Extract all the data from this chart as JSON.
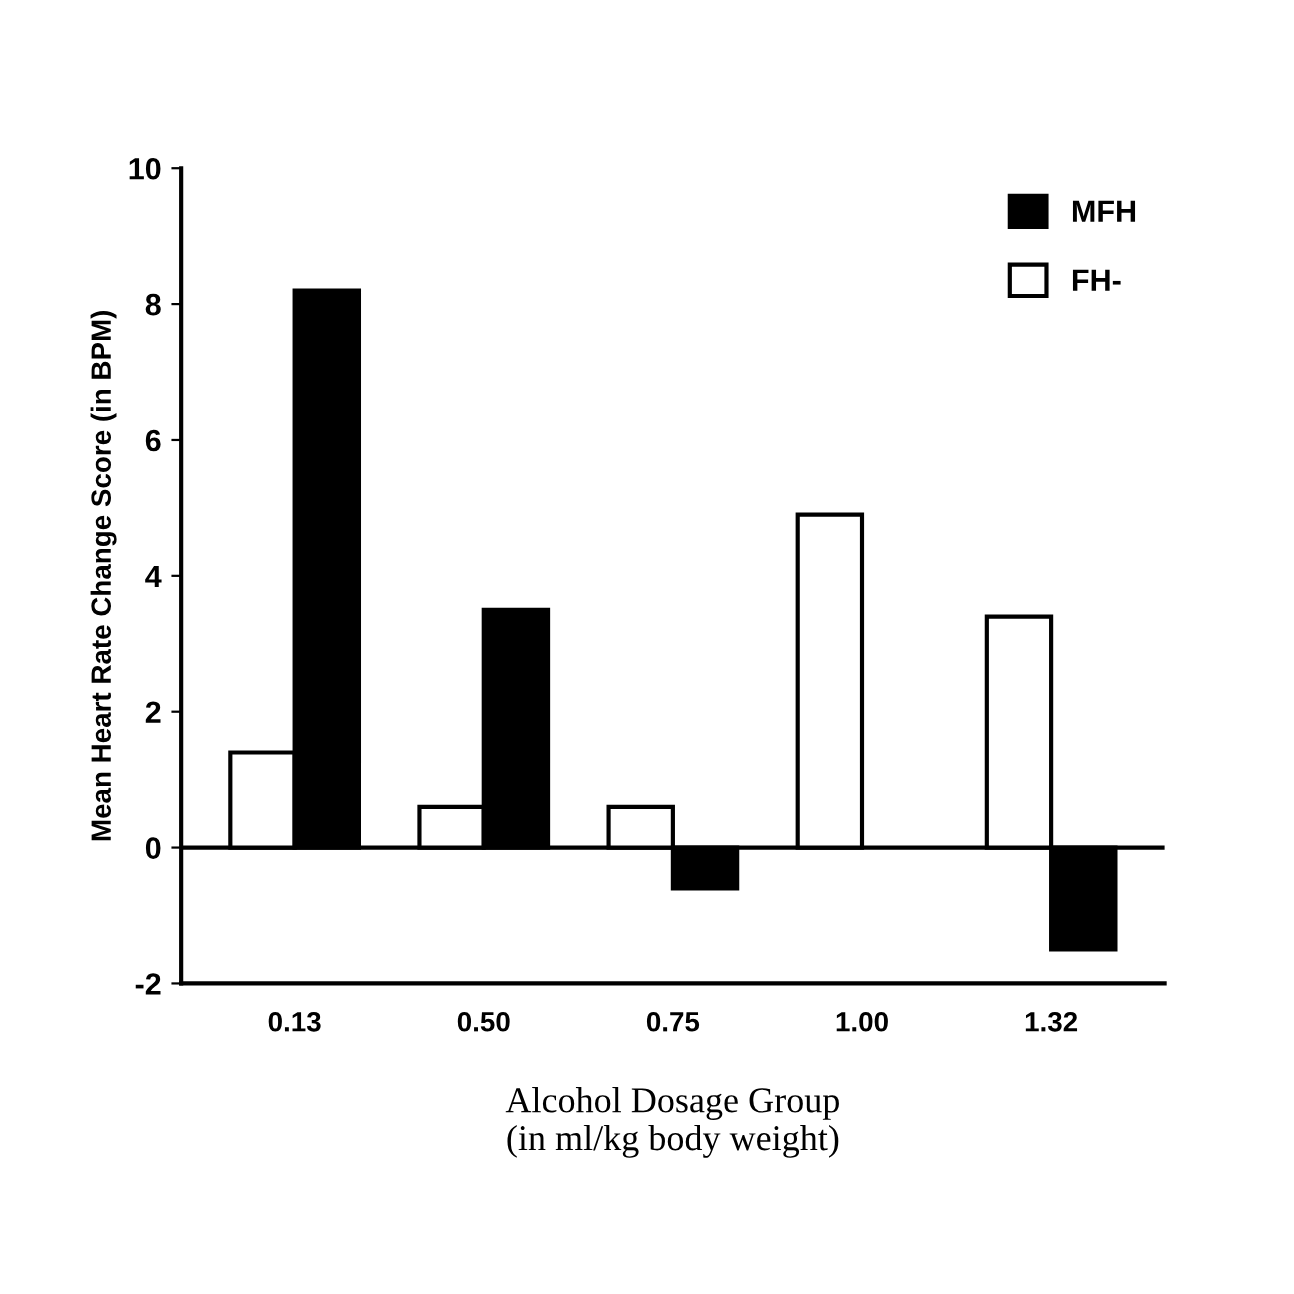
{
  "chart_data": {
    "type": "bar",
    "xlabel": "Alcohol Dosage Group\n(in ml/kg body weight)",
    "ylabel": "Mean Heart Rate Change Score (in BPM)",
    "categories": [
      "0.13",
      "0.50",
      "0.75",
      "1.00",
      "1.32"
    ],
    "series": [
      {
        "name": "FH-",
        "color": "#ffffff",
        "values": [
          1.4,
          0.6,
          0.6,
          4.9,
          3.4
        ]
      },
      {
        "name": "MFH",
        "color": "#000000",
        "values": [
          8.2,
          3.5,
          -0.6,
          null,
          -1.5
        ]
      }
    ],
    "ylim": [
      -2,
      10
    ],
    "yticks": [
      -2,
      0,
      2,
      4,
      6,
      8,
      10
    ],
    "ref_lines": [
      {
        "axis": "y",
        "value": 0,
        "label": null,
        "color": "#000000"
      }
    ],
    "legend": "top right",
    "grid": false
  }
}
